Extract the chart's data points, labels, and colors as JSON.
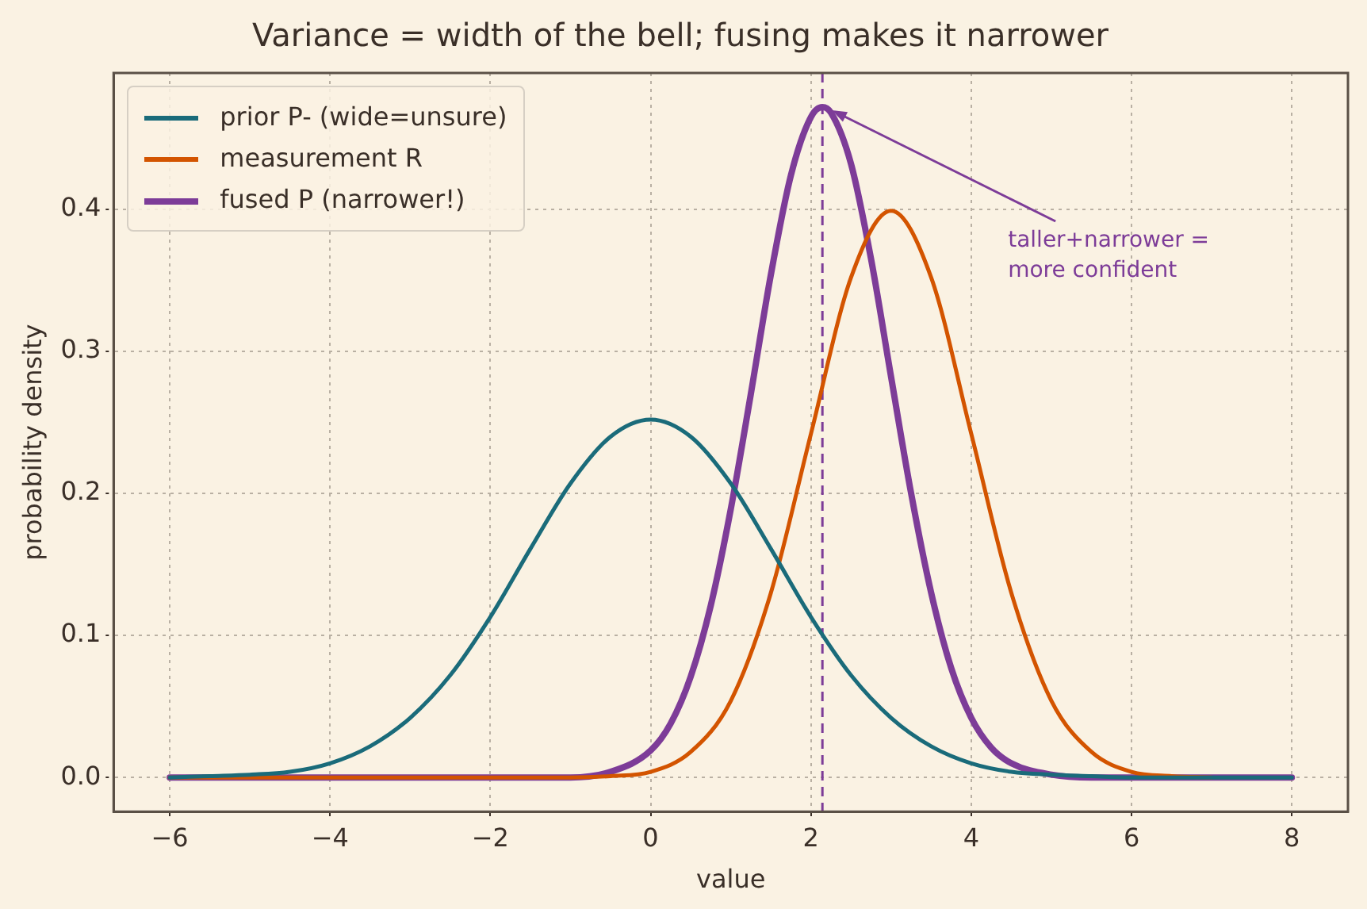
{
  "chart_data": {
    "type": "line",
    "title": "Variance = width of the bell; fusing makes it narrower",
    "xlabel": "value",
    "ylabel": "probability density",
    "x": [
      -6,
      -5.5,
      -5,
      -4.5,
      -4,
      -3.5,
      -3,
      -2.5,
      -2,
      -1.5,
      -1,
      -0.5,
      0,
      0.5,
      1,
      1.5,
      2,
      2.5,
      3,
      3.5,
      4,
      4.5,
      5,
      5.5,
      6,
      6.5,
      7,
      7.5,
      8
    ],
    "series": [
      {
        "name": "prior P- (wide=unsure)",
        "color": "#1a6b7a",
        "values": [
          0.0,
          0.001,
          0.002,
          0.004,
          0.01,
          0.022,
          0.042,
          0.072,
          0.113,
          0.161,
          0.207,
          0.24,
          0.252,
          0.24,
          0.207,
          0.161,
          0.113,
          0.072,
          0.042,
          0.022,
          0.01,
          0.004,
          0.002,
          0.001,
          0.0,
          0.0,
          0.0,
          0.0,
          0.0
        ]
      },
      {
        "name": "measurement R",
        "color": "#d35400",
        "values": [
          0,
          0,
          0,
          0,
          0,
          0,
          0,
          0,
          0,
          0,
          0,
          0.001,
          0.004,
          0.018,
          0.054,
          0.13,
          0.242,
          0.352,
          0.399,
          0.352,
          0.242,
          0.13,
          0.054,
          0.018,
          0.004,
          0.001,
          0,
          null,
          null
        ]
      },
      {
        "name": "fused P (narrower!)",
        "color": "#7d3c98",
        "x": [
          -6,
          -4,
          -2,
          -1,
          -0.5,
          0,
          0.25,
          0.5,
          0.75,
          1,
          1.25,
          1.5,
          1.75,
          2,
          2.143,
          2.25,
          2.5,
          2.75,
          3,
          3.25,
          3.5,
          3.75,
          4,
          4.25,
          4.5,
          5,
          5.5,
          6,
          8
        ],
        "values": [
          0,
          0,
          0,
          0.0,
          0.004,
          0.019,
          0.038,
          0.071,
          0.121,
          0.189,
          0.27,
          0.354,
          0.424,
          0.465,
          0.472,
          0.468,
          0.432,
          0.365,
          0.282,
          0.2,
          0.13,
          0.077,
          0.042,
          0.021,
          0.01,
          0.002,
          0.0,
          0,
          0
        ]
      }
    ],
    "xlim": [
      -6.7,
      8.7
    ],
    "xticks": [
      {
        "value": -6,
        "label": "−6"
      },
      {
        "value": -4,
        "label": "−4"
      },
      {
        "value": -2,
        "label": "−2"
      },
      0,
      2,
      4,
      6,
      8
    ],
    "ylim": [
      -0.024,
      0.496
    ],
    "yticks": [
      {
        "value": 0,
        "label": "0.0"
      },
      0.1,
      0.2,
      0.3,
      0.4
    ],
    "ref_lines": [
      {
        "axis": "x",
        "value": 2.143,
        "color": "#7d3c98",
        "line_style": "dashed"
      }
    ],
    "annotations": [
      {
        "text": "taller+narrower =\nmore confident",
        "x": 2.143,
        "y": 0.472
      }
    ],
    "grid": true,
    "legend": "top left",
    "marker": "none",
    "line_style": "solid"
  }
}
